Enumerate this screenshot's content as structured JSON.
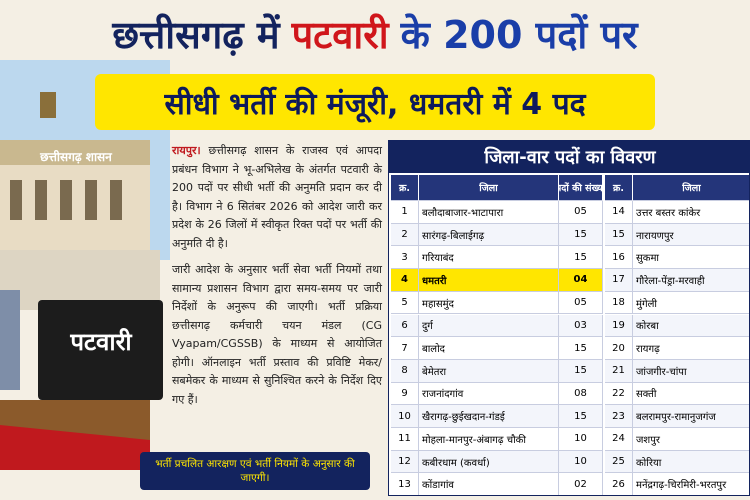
{
  "headline": {
    "line1": [
      "छत्तीसगढ़ में",
      "पटवारी",
      "के 200 पदों पर"
    ],
    "line2": "सीधी भर्ती की मंजूरी, धमतरी में 4 पद"
  },
  "image": {
    "building_sign": "छत्तीसगढ़ शासन",
    "name_plate": "पटवारी"
  },
  "article": {
    "dateline": "रायपुर।",
    "paragraphs": [
      "छत्तीसगढ़ शासन के राजस्व एवं आपदा प्रबंधन विभाग ने भू-अभिलेख के अंतर्गत पटवारी के 200 पदों पर सीधी भर्ती की अनुमति प्रदान कर दी है। विभाग ने 6 सितंबर 2026 को आदेश जारी कर प्रदेश के 26 जिलों में स्वीकृत रिक्त पदों पर भर्ती की अनुमति दी है।",
      "जारी आदेश के अनुसार भर्ती सेवा भर्ती नियमों तथा सामान्य प्रशासन विभाग द्वारा समय-समय पर जारी निर्देशों के अनुरूप की जाएगी। भर्ती प्रक्रिया छत्तीसगढ़ कर्मचारी चयन मंडल (CG Vyapam/CGSSB) के माध्यम से आयोजित होगी। ऑनलाइन भर्ती प्रस्ताव की प्रविष्टि मेकर/सबमेकर के माध्यम से सुनिश्चित करने के निर्देश दिए गए हैं।"
    ],
    "note": "भर्ती प्रचलित आरक्षण एवं भर्ती नियमों के अनुसार की जाएगी।"
  },
  "table": {
    "title": "जिला-वार पदों का विवरण",
    "left_header": [
      "क्र.",
      "जिला",
      "पदों की संख्या"
    ],
    "left_rows": [
      [
        "1",
        "बलौदाबाजार-भाटापारा",
        "05"
      ],
      [
        "2",
        "सारंगढ़-बिलाईगढ़",
        "15"
      ],
      [
        "3",
        "गरियाबंद",
        "15"
      ],
      [
        "4",
        "धमतरी",
        "04"
      ],
      [
        "5",
        "महासमुंद",
        "05"
      ],
      [
        "6",
        "दुर्ग",
        "03"
      ],
      [
        "7",
        "बालोद",
        "15"
      ],
      [
        "8",
        "बेमेतरा",
        "15"
      ],
      [
        "9",
        "राजनांदगांव",
        "08"
      ],
      [
        "10",
        "खैरागढ़-छुईखदान-गंडई",
        "15"
      ],
      [
        "11",
        "मोहला-मानपुर-अंबागढ़ चौकी",
        "10"
      ],
      [
        "12",
        "कबीरधाम (कवर्धा)",
        "10"
      ],
      [
        "13",
        "कोंडागांव",
        "02"
      ]
    ],
    "right_header": [
      "क्र.",
      "जिला"
    ],
    "right_rows": [
      [
        "14",
        "उत्तर बस्तर कांकेर"
      ],
      [
        "15",
        "नारायणपुर"
      ],
      [
        "16",
        "सुकमा"
      ],
      [
        "17",
        "गौरेला-पेंड्रा-मरवाही"
      ],
      [
        "18",
        "मुंगेली"
      ],
      [
        "19",
        "कोरबा"
      ],
      [
        "20",
        "रायगढ़"
      ],
      [
        "21",
        "जांजगीर-चांपा"
      ],
      [
        "22",
        "सक्ती"
      ],
      [
        "23",
        "बलरामपुर-रामानुजगंज"
      ],
      [
        "24",
        "जशपुर"
      ],
      [
        "25",
        "कोरिया"
      ],
      [
        "26",
        "मनेंद्रगढ़-चिरमिरी-भरतपुर"
      ]
    ]
  }
}
